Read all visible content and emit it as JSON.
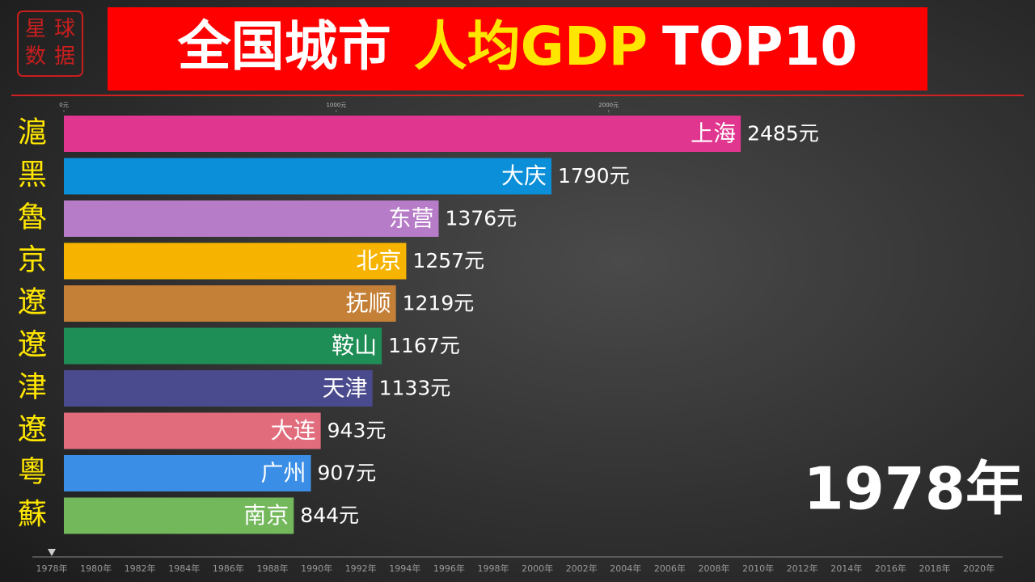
{
  "logo": [
    "星",
    "球",
    "数",
    "据"
  ],
  "chart_data": {
    "type": "hbar",
    "title": [
      {
        "text": "全国城市",
        "color": "#ffffff"
      },
      {
        "text": "人均GDP",
        "color": "#ffe600"
      },
      {
        "text": "TOP10",
        "color": "#ffffff"
      }
    ],
    "categories": [
      "上海",
      "大庆",
      "东营",
      "北京",
      "抚顺",
      "鞍山",
      "天津",
      "大连",
      "广州",
      "南京"
    ],
    "regions": [
      "滬",
      "黑",
      "魯",
      "京",
      "遼",
      "遼",
      "津",
      "遼",
      "粵",
      "蘇"
    ],
    "values": [
      2485,
      1790,
      1376,
      1257,
      1219,
      1167,
      1133,
      943,
      907,
      844
    ],
    "value_labels": [
      "2485元",
      "1790元",
      "1376元",
      "1257元",
      "1219元",
      "1167元",
      "1133元",
      "943元",
      "907元",
      "844元"
    ],
    "colors": [
      "#e0368f",
      "#0a8fd8",
      "#b77cc8",
      "#f6b400",
      "#c58037",
      "#1f8e56",
      "#4a4a8e",
      "#e06c7c",
      "#3a8ee6",
      "#74b85c"
    ],
    "xlim": [
      0,
      3500
    ],
    "xticks": [
      {
        "value": 0,
        "label": "0元"
      },
      {
        "value": 1000,
        "label": "1000元"
      },
      {
        "value": 2000,
        "label": "2000元"
      }
    ],
    "year": "1978年",
    "timeline": [
      "1978年",
      "1980年",
      "1982年",
      "1984年",
      "1986年",
      "1988年",
      "1990年",
      "1992年",
      "1994年",
      "1996年",
      "1998年",
      "2000年",
      "2002年",
      "2004年",
      "2006年",
      "2008年",
      "2010年",
      "2012年",
      "2014年",
      "2016年",
      "2018年",
      "2020年"
    ]
  }
}
